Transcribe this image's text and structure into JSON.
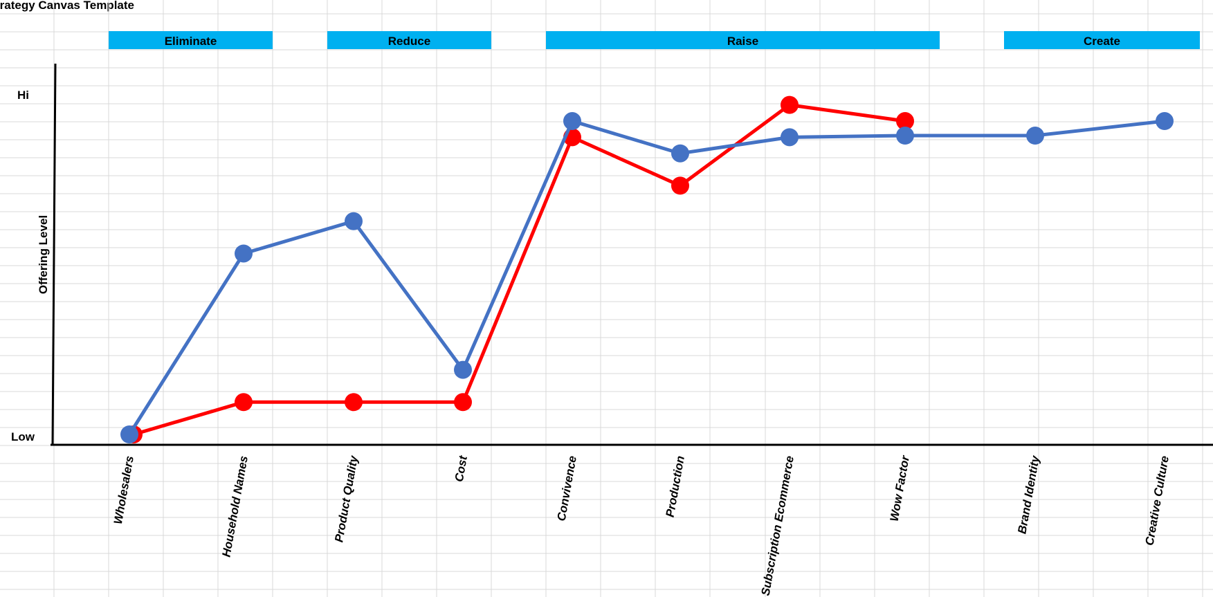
{
  "page": {
    "title": "trategy Canvas Template"
  },
  "colors": {
    "header_fill": "#00b0f0",
    "series_blue": "#4472c4",
    "series_red": "#ff0000",
    "gridline": "#d9d9d9",
    "axis": "#000000"
  },
  "chart_data": {
    "type": "line",
    "title": "",
    "xlabel": "",
    "ylabel": "Offering Level",
    "y_tick_labels": [
      "Hi",
      "Low"
    ],
    "ylim": [
      0,
      10
    ],
    "grid": true,
    "legend": "none",
    "x_label_rotation": "vertical",
    "headers": [
      {
        "label": "Eliminate",
        "from": 0,
        "to": 1
      },
      {
        "label": "Reduce",
        "from": 2,
        "to": 3
      },
      {
        "label": "Raise",
        "from": 4,
        "to": 7
      },
      {
        "label": "Create",
        "from": 8,
        "to": 9
      }
    ],
    "categories": [
      "Wholesalers",
      "Household Names",
      "Product Quality",
      "Cost",
      "Convivence",
      "Production",
      "Subscription Ecommerce",
      "Wow Factor",
      "Brand Identity",
      "Creative Culture"
    ],
    "series": [
      {
        "color": "#4472c4",
        "values": [
          0.0,
          5.6,
          6.6,
          2.0,
          9.7,
          8.7,
          9.2,
          9.25,
          9.25,
          9.7
        ]
      },
      {
        "color": "#ff0000",
        "values": [
          0.0,
          1.0,
          1.0,
          1.0,
          9.2,
          7.7,
          10.2,
          9.7,
          null,
          null
        ]
      }
    ]
  }
}
